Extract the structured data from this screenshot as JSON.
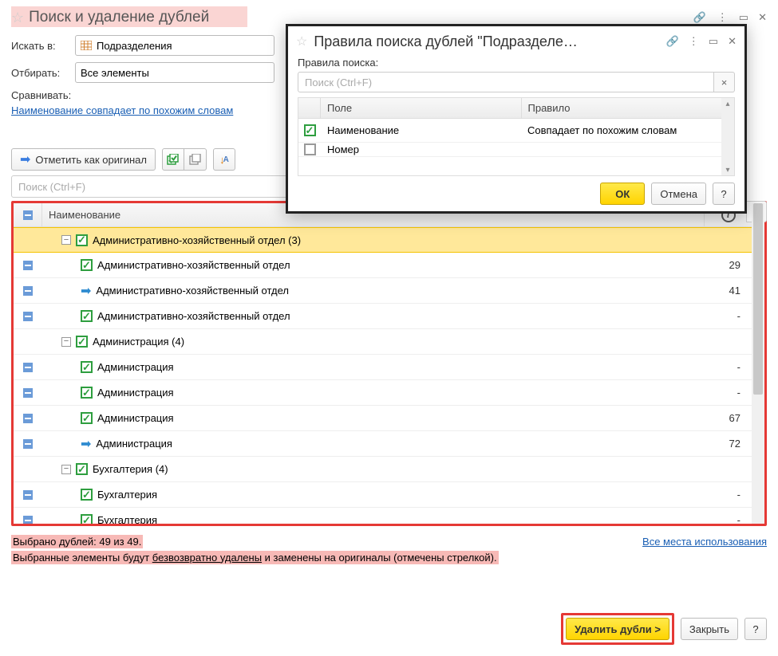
{
  "main": {
    "title": "Поиск и удаление дублей",
    "search_in_label": "Искать в:",
    "search_in_value": "Подразделения",
    "filter_label": "Отбирать:",
    "filter_value": "Все элементы",
    "compare_label": "Сравнивать:",
    "compare_link": "Наименование совпадает по похожим словам",
    "mark_original_btn": "Отметить как оригинал",
    "search_placeholder": "Поиск (Ctrl+F)"
  },
  "tree": {
    "header_name": "Наименование",
    "rows": [
      {
        "indent": 1,
        "collapse": "⊖",
        "icon": "check",
        "label": "Административно-хозяйственный отдел (3)",
        "value": "",
        "selected": true,
        "top_minus": false
      },
      {
        "indent": 2,
        "collapse": "",
        "icon": "check",
        "label": "Административно-хозяйственный отдел",
        "value": "29",
        "selected": false,
        "top_minus": true
      },
      {
        "indent": 2,
        "collapse": "",
        "icon": "arrow",
        "label": "Административно-хозяйственный отдел",
        "value": "41",
        "selected": false,
        "top_minus": true
      },
      {
        "indent": 2,
        "collapse": "",
        "icon": "check",
        "label": "Административно-хозяйственный отдел",
        "value": "-",
        "selected": false,
        "top_minus": true
      },
      {
        "indent": 1,
        "collapse": "⊖",
        "icon": "check",
        "label": "Администрация (4)",
        "value": "",
        "selected": false,
        "top_minus": false
      },
      {
        "indent": 2,
        "collapse": "",
        "icon": "check",
        "label": "Администрация",
        "value": "-",
        "selected": false,
        "top_minus": true
      },
      {
        "indent": 2,
        "collapse": "",
        "icon": "check",
        "label": "Администрация",
        "value": "-",
        "selected": false,
        "top_minus": true
      },
      {
        "indent": 2,
        "collapse": "",
        "icon": "check",
        "label": "Администрация",
        "value": "67",
        "selected": false,
        "top_minus": true
      },
      {
        "indent": 2,
        "collapse": "",
        "icon": "arrow",
        "label": "Администрация",
        "value": "72",
        "selected": false,
        "top_minus": true
      },
      {
        "indent": 1,
        "collapse": "⊖",
        "icon": "check",
        "label": "Бухгалтерия (4)",
        "value": "",
        "selected": false,
        "top_minus": false
      },
      {
        "indent": 2,
        "collapse": "",
        "icon": "check",
        "label": "Бухгалтерия",
        "value": "-",
        "selected": false,
        "top_minus": true
      },
      {
        "indent": 2,
        "collapse": "",
        "icon": "check",
        "label": "Бухгалтерия",
        "value": "-",
        "selected": false,
        "top_minus": true
      }
    ]
  },
  "footer": {
    "selected_text": "Выбрано дублей: 49 из 49.",
    "warn_1": "Выбранные элементы будут ",
    "warn_link": "безвозвратно удалены",
    "warn_2": " и заменены на оригиналы (отмечены стрелкой).",
    "usage_link": "Все места использования",
    "delete_btn": "Удалить дубли >",
    "close_btn": "Закрыть",
    "help_btn": "?"
  },
  "modal": {
    "title": "Правила поиска дублей \"Подразделе…",
    "rules_label": "Правила поиска:",
    "search_placeholder": "Поиск (Ctrl+F)",
    "col_field": "Поле",
    "col_rule": "Правило",
    "rows": [
      {
        "checked": true,
        "field": "Наименование",
        "rule": "Совпадает по похожим словам"
      },
      {
        "checked": false,
        "field": "Номер",
        "rule": ""
      }
    ],
    "ok_btn": "ОК",
    "cancel_btn": "Отмена",
    "help_btn": "?"
  }
}
